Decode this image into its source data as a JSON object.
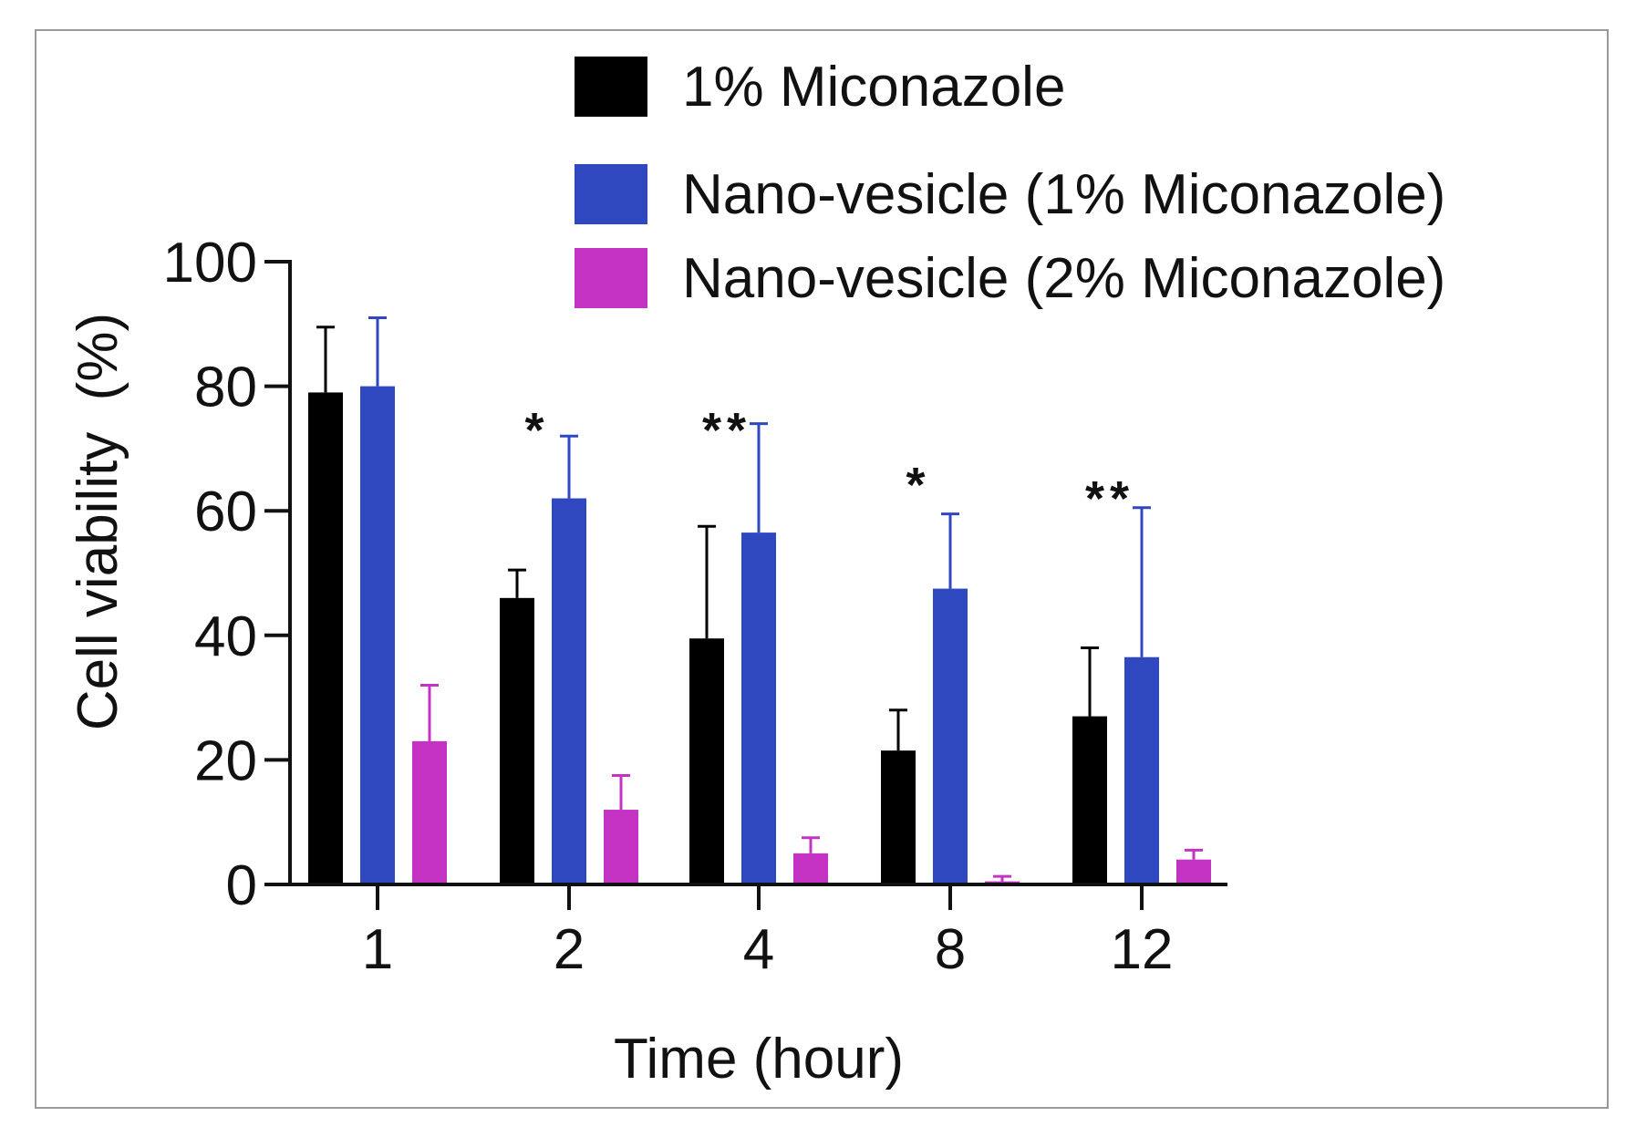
{
  "chart_data": {
    "type": "bar",
    "title": "",
    "xlabel": "Time (hour)",
    "ylabel": "Cell viability  (%)",
    "ylim": [
      0,
      100
    ],
    "yticks": [
      0,
      20,
      40,
      60,
      80,
      100
    ],
    "categories": [
      "1",
      "2",
      "4",
      "8",
      "12"
    ],
    "series": [
      {
        "name": "1% Miconazole",
        "color": "#000000",
        "values": [
          79,
          46,
          39.5,
          21.5,
          27
        ],
        "errors": [
          10.5,
          4.5,
          18,
          6.5,
          11
        ]
      },
      {
        "name": "Nano-vesicle (1% Miconazole)",
        "color": "#2f48bf",
        "values": [
          80,
          62,
          56.5,
          47.5,
          36.5
        ],
        "errors": [
          11,
          10,
          17.5,
          12,
          24
        ]
      },
      {
        "name": "Nano-vesicle (2% Miconazole)",
        "color": "#c433c4",
        "values": [
          23,
          12,
          5,
          0.5,
          4
        ],
        "errors": [
          9,
          5.5,
          2.5,
          0.8,
          1.5
        ]
      }
    ],
    "annotations": [
      "",
      "*",
      "**",
      "*",
      "**"
    ],
    "legend": "top-right",
    "grid": false
  }
}
